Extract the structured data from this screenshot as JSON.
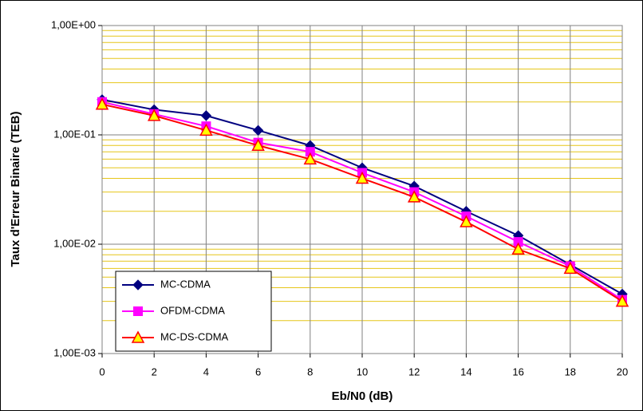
{
  "chart_data": {
    "type": "line",
    "xlabel": "Eb/N0 (dB)",
    "ylabel": "Taux d'Erreur Binaire (TEB)",
    "x": [
      0,
      2,
      4,
      6,
      8,
      10,
      12,
      14,
      16,
      18,
      20
    ],
    "xlim": [
      0,
      20
    ],
    "xticks": [
      0,
      2,
      4,
      6,
      8,
      10,
      12,
      14,
      16,
      18,
      20
    ],
    "ylim": [
      0.001,
      1
    ],
    "log_y": true,
    "yticks": [
      {
        "value": 0.001,
        "label": "1,00E-03"
      },
      {
        "value": 0.01,
        "label": "1,00E-02"
      },
      {
        "value": 0.1,
        "label": "1,00E-01"
      },
      {
        "value": 1,
        "label": "1,00E+00"
      }
    ],
    "grid": true,
    "legend": "lower left",
    "series": [
      {
        "name": "MC-CDMA",
        "color": "#000080",
        "marker": "diamond",
        "values": [
          0.21,
          0.17,
          0.15,
          0.11,
          0.08,
          0.05,
          0.034,
          0.02,
          0.012,
          0.0065,
          0.0035
        ]
      },
      {
        "name": "OFDM-CDMA",
        "color": "#ff00ff",
        "marker": "square",
        "values": [
          0.2,
          0.155,
          0.12,
          0.085,
          0.07,
          0.045,
          0.03,
          0.018,
          0.0105,
          0.0063,
          0.0031
        ]
      },
      {
        "name": "MC-DS-CDMA",
        "color": "#ff0000",
        "marker": "triangle",
        "values": [
          0.19,
          0.15,
          0.11,
          0.08,
          0.06,
          0.04,
          0.027,
          0.016,
          0.009,
          0.006,
          0.003
        ]
      }
    ]
  }
}
